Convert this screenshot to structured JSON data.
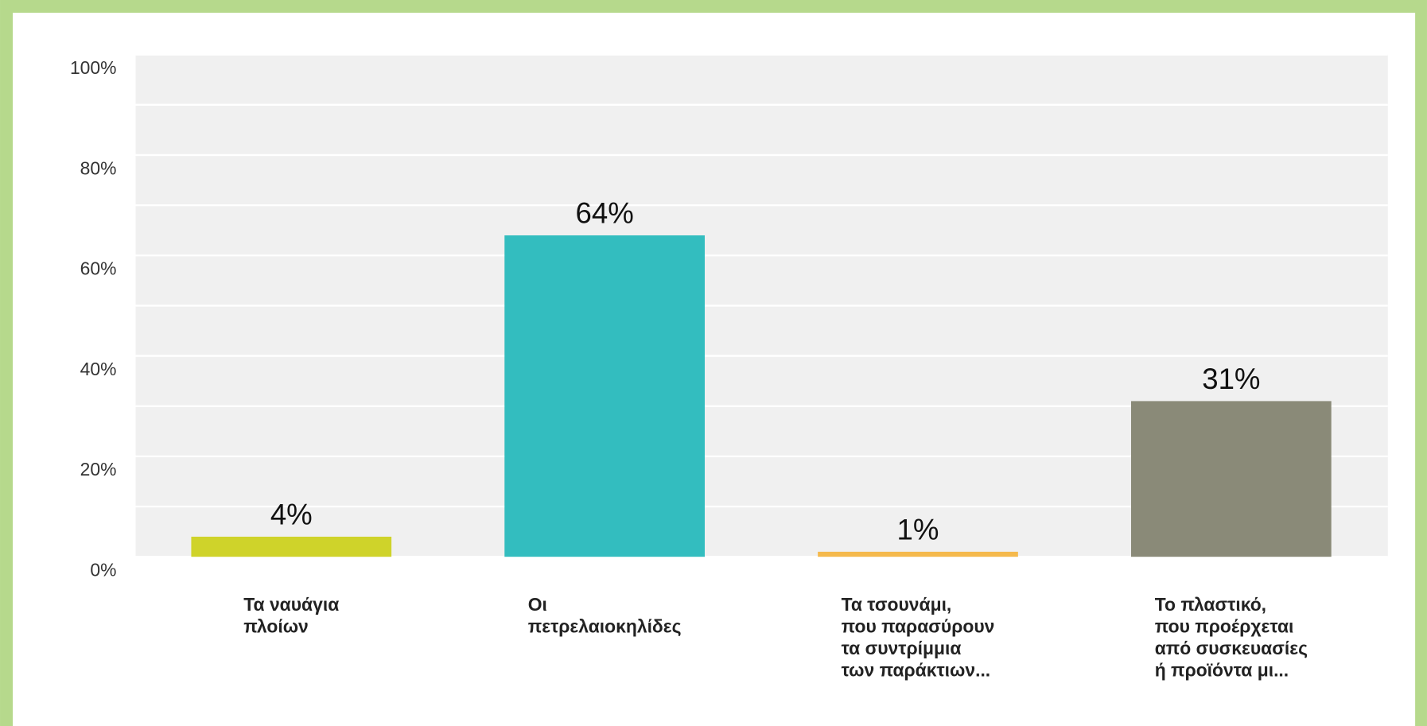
{
  "chart_data": {
    "type": "bar",
    "categories": [
      [
        "Τα ναυάγια",
        "πλοίων"
      ],
      [
        "Οι",
        "πετρελαιοκηλίδες"
      ],
      [
        "Τα τσουνάμι,",
        "που παρασύρουν",
        "τα συντρίμμια",
        "των παράκτιων..."
      ],
      [
        "Το πλαστικό,",
        "που προέρχεται",
        "από συσκευασίες",
        "ή προϊόντα μι..."
      ]
    ],
    "values": [
      4,
      64,
      1,
      31
    ],
    "value_labels": [
      "4%",
      "64%",
      "1%",
      "31%"
    ],
    "colors": [
      "#cfd32a",
      "#33bdbf",
      "#f5b94c",
      "#8a8a78"
    ],
    "ylim": [
      0,
      100
    ],
    "yticks": [
      {
        "value": 0,
        "label": "0%"
      },
      {
        "value": 20,
        "label": "20%"
      },
      {
        "value": 40,
        "label": "40%"
      },
      {
        "value": 60,
        "label": "60%"
      },
      {
        "value": 80,
        "label": "80%"
      },
      {
        "value": 100,
        "label": "100%"
      }
    ],
    "ygrid": [
      0,
      10,
      20,
      30,
      40,
      50,
      60,
      70,
      80,
      90,
      100
    ],
    "grid": true
  }
}
